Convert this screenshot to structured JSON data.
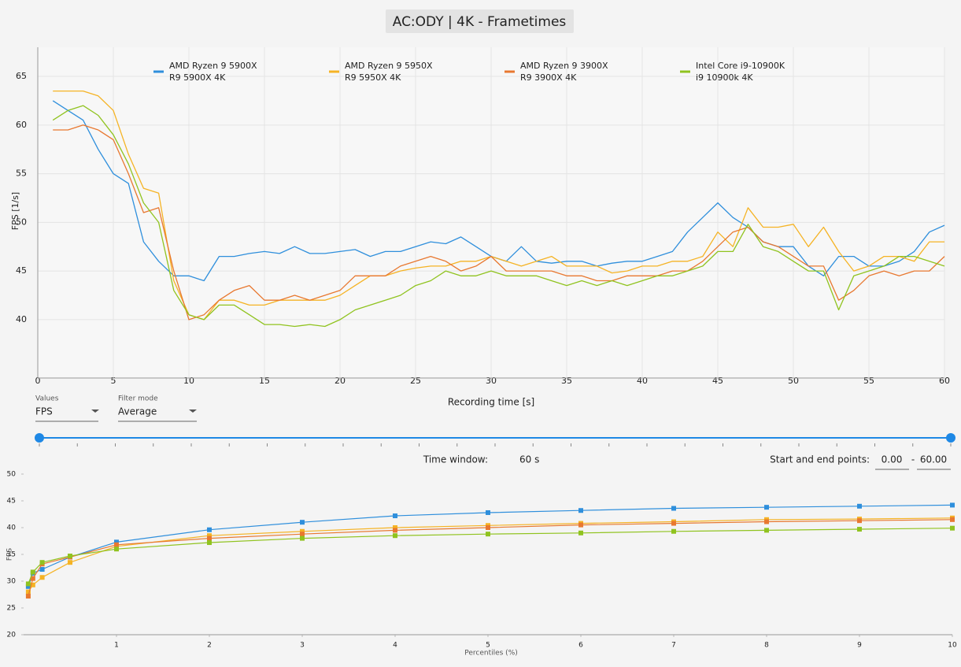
{
  "controls": {
    "values_label": "Values",
    "values_value": "FPS",
    "filter_label": "Filter mode",
    "filter_value": "Average",
    "time_window_label": "Time window:",
    "time_window_value": "60 s",
    "points_label": "Start and end points:",
    "start_point": "0.00",
    "points_separator": "-",
    "end_point": "60.00"
  },
  "chart_data": [
    {
      "type": "line",
      "title": "AC:ODY | 4K - Frametimes",
      "x_label": "Recording time [s]",
      "y_label": "FPS [1/s]",
      "x": [
        1,
        2,
        3,
        4,
        5,
        6,
        7,
        8,
        9,
        10,
        11,
        12,
        13,
        14,
        15,
        16,
        17,
        18,
        19,
        20,
        21,
        22,
        23,
        24,
        25,
        26,
        27,
        28,
        29,
        30,
        31,
        32,
        33,
        34,
        35,
        36,
        37,
        38,
        39,
        40,
        41,
        42,
        43,
        44,
        45,
        46,
        47,
        48,
        49,
        50,
        51,
        52,
        53,
        54,
        55,
        56,
        57,
        58,
        59,
        60
      ],
      "xlim": [
        0,
        60
      ],
      "xticks": [
        0,
        5,
        10,
        15,
        20,
        25,
        30,
        35,
        40,
        45,
        50,
        55,
        60
      ],
      "ylim": [
        34,
        68
      ],
      "yticks": [
        40,
        45,
        50,
        55,
        60,
        65
      ],
      "grid": true,
      "series": [
        {
          "name": "AMD Ryzen 9 5900X",
          "detail": "R9 5900X 4K",
          "color": "#2f8fdc",
          "values": [
            62.5,
            61.5,
            60.5,
            57.5,
            55,
            54,
            48,
            46,
            44.5,
            44.5,
            44,
            46.5,
            46.5,
            46.8,
            47,
            46.8,
            47.5,
            46.8,
            46.8,
            47,
            47.2,
            46.5,
            47,
            47,
            47.5,
            48,
            47.8,
            48.5,
            47.5,
            46.5,
            46,
            47.5,
            46,
            45.8,
            46,
            46,
            45.5,
            45.8,
            46,
            46,
            46.5,
            47,
            49,
            50.5,
            52,
            50.5,
            49.5,
            48,
            47.5,
            47.5,
            45.5,
            44.5,
            46.5,
            46.5,
            45.5,
            45.5,
            46,
            47,
            49,
            49.7
          ]
        },
        {
          "name": "AMD Ryzen 9 5950X",
          "detail": "R9 5950X 4K",
          "color": "#f5b324",
          "values": [
            63.5,
            63.5,
            63.5,
            63,
            61.5,
            57,
            53.5,
            53,
            44,
            40.5,
            40,
            42,
            42,
            41.5,
            41.5,
            42,
            42,
            42,
            42,
            42.5,
            43.5,
            44.5,
            44.5,
            45,
            45.3,
            45.5,
            45.5,
            46,
            46,
            46.5,
            46,
            45.5,
            46,
            46.5,
            45.5,
            45.5,
            45.5,
            44.8,
            45,
            45.5,
            45.5,
            46,
            46,
            46.5,
            49,
            47.5,
            51.5,
            49.5,
            49.5,
            49.8,
            47.5,
            49.5,
            47,
            45,
            45.5,
            46.5,
            46.5,
            46,
            48,
            48
          ]
        },
        {
          "name": "AMD Ryzen 9 3900X",
          "detail": "R9 3900X 4K",
          "color": "#e87830",
          "values": [
            59.5,
            59.5,
            60,
            59.5,
            58.5,
            55,
            51,
            51.5,
            45,
            40,
            40.5,
            42,
            43,
            43.5,
            42,
            42,
            42.5,
            42,
            42.5,
            43,
            44.5,
            44.5,
            44.5,
            45.5,
            46,
            46.5,
            46,
            45,
            45.5,
            46.5,
            45,
            45,
            45,
            45,
            44.5,
            44.5,
            44,
            44,
            44.5,
            44.5,
            44.5,
            45,
            45,
            46,
            47.5,
            49,
            49.5,
            48,
            47.5,
            46.5,
            45.5,
            45.5,
            42,
            43,
            44.5,
            45,
            44.5,
            45,
            45,
            46.5
          ]
        },
        {
          "name": "Intel Core i9-10900K",
          "detail": "i9 10900k 4K",
          "color": "#90c31f",
          "values": [
            60.5,
            61.5,
            62,
            61,
            59,
            56,
            52,
            50,
            43,
            40.5,
            40,
            41.5,
            41.5,
            40.5,
            39.5,
            39.5,
            39.3,
            39.5,
            39.3,
            40,
            41,
            41.5,
            42,
            42.5,
            43.5,
            44,
            45,
            44.5,
            44.5,
            45,
            44.5,
            44.5,
            44.5,
            44,
            43.5,
            44,
            43.5,
            44,
            43.5,
            44,
            44.5,
            44.5,
            45,
            45.5,
            47,
            47,
            49.8,
            47.5,
            47,
            46,
            45,
            45,
            41,
            44.5,
            45,
            45.5,
            46.5,
            46.5,
            46,
            45.5
          ]
        }
      ]
    },
    {
      "type": "line",
      "markers": true,
      "x_label": "Percentiles (%)",
      "y_label": "FPS",
      "x": [
        0.05,
        0.1,
        0.2,
        0.5,
        1,
        2,
        3,
        4,
        5,
        6,
        7,
        8,
        9,
        10
      ],
      "xlim": [
        0,
        10
      ],
      "xticks": [
        1,
        2,
        3,
        4,
        5,
        6,
        7,
        8,
        9,
        10
      ],
      "ylim": [
        20,
        50
      ],
      "yticks": [
        20,
        25,
        30,
        35,
        40,
        45,
        50
      ],
      "grid": false,
      "series": [
        {
          "name": "AMD Ryzen 9 5900X",
          "color": "#2f8fdc",
          "values": [
            29,
            31.5,
            32.2,
            34.5,
            37.3,
            39.6,
            41,
            42.2,
            42.8,
            43.2,
            43.6,
            43.8,
            44,
            44.2
          ]
        },
        {
          "name": "AMD Ryzen 9 5950X",
          "color": "#f5b324",
          "values": [
            28,
            29.3,
            30.7,
            33.5,
            36.5,
            38.5,
            39.3,
            40,
            40.4,
            40.8,
            41.1,
            41.5,
            41.6,
            41.8
          ]
        },
        {
          "name": "AMD Ryzen 9 3900X",
          "color": "#e87830",
          "values": [
            27.2,
            30.5,
            33.2,
            34.5,
            36.8,
            38,
            38.8,
            39.5,
            40,
            40.5,
            40.8,
            41.1,
            41.3,
            41.5
          ]
        },
        {
          "name": "Intel Core i9-10900K",
          "color": "#90c31f",
          "values": [
            29.5,
            31.7,
            33.5,
            34.7,
            36,
            37.2,
            38,
            38.5,
            38.8,
            39,
            39.3,
            39.5,
            39.7,
            39.9
          ]
        }
      ]
    }
  ]
}
